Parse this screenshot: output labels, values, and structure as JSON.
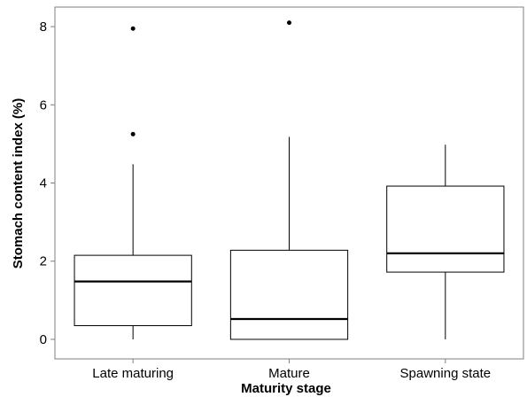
{
  "chart_data": {
    "type": "boxplot",
    "title": "",
    "xlabel": "Maturity stage",
    "ylabel": "Stomach content index (%)",
    "ylim": [
      -0.5,
      8.5
    ],
    "yticks": [
      0,
      2,
      4,
      6,
      8
    ],
    "grid": false,
    "categories": [
      "Late maturing",
      "Mature",
      "Spawning state"
    ],
    "boxes": [
      {
        "category": "Late maturing",
        "whisker_low": 0.0,
        "q1": 0.35,
        "median": 1.48,
        "q3": 2.15,
        "whisker_high": 4.48,
        "outliers": [
          5.25,
          7.95
        ]
      },
      {
        "category": "Mature",
        "whisker_low": 0.0,
        "q1": 0.0,
        "median": 0.52,
        "q3": 2.28,
        "whisker_high": 5.18,
        "outliers": [
          8.1
        ]
      },
      {
        "category": "Spawning state",
        "whisker_low": 0.0,
        "q1": 1.72,
        "median": 2.2,
        "q3": 3.92,
        "whisker_high": 4.98,
        "outliers": []
      }
    ]
  }
}
